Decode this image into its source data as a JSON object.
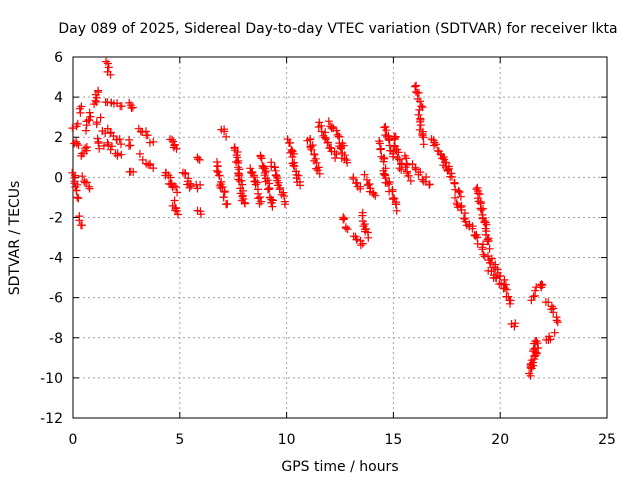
{
  "chart_data": {
    "type": "scatter",
    "title": "Day 089 of 2025, Sidereal Day-to-day VTEC variation (SDTVAR) for receiver lkta",
    "xlabel": "GPS time / hours",
    "ylabel": "SDTVAR / TECUs",
    "xlim": [
      0,
      25
    ],
    "ylim": [
      -12,
      6
    ],
    "xticks": [
      0,
      5,
      10,
      15,
      20,
      25
    ],
    "yticks": [
      -12,
      -10,
      -8,
      -6,
      -4,
      -2,
      0,
      2,
      4,
      6
    ],
    "grid": true,
    "marker": "+",
    "color": "#ff0000",
    "series": [
      {
        "name": "SDTVAR",
        "segments": [
          {
            "x": [
              0.0,
              0.2
            ],
            "y": [
              2.4,
              2.6
            ]
          },
          {
            "x": [
              0.0,
              0.3
            ],
            "y": [
              1.8,
              1.5
            ]
          },
          {
            "x": [
              0.0,
              0.25
            ],
            "y": [
              0.2,
              -1.0
            ]
          },
          {
            "x": [
              0.3,
              0.4
            ],
            "y": [
              -2.1,
              -2.5
            ]
          },
          {
            "x": [
              0.3,
              0.45
            ],
            "y": [
              3.2,
              3.5
            ]
          },
          {
            "x": [
              0.4,
              0.7
            ],
            "y": [
              1.0,
              1.6
            ]
          },
          {
            "x": [
              0.5,
              0.75
            ],
            "y": [
              0.0,
              -0.6
            ]
          },
          {
            "x": [
              0.6,
              0.8
            ],
            "y": [
              2.5,
              3.2
            ]
          },
          {
            "x": [
              1.0,
              1.15
            ],
            "y": [
              3.6,
              4.3
            ]
          },
          {
            "x": [
              1.05,
              1.25
            ],
            "y": [
              2.8,
              3.0
            ]
          },
          {
            "x": [
              1.1,
              1.25
            ],
            "y": [
              2.0,
              1.6
            ]
          },
          {
            "x": [
              1.5,
              1.75
            ],
            "y": [
              5.7,
              5.2
            ]
          },
          {
            "x": [
              1.5,
              2.3
            ],
            "y": [
              3.7,
              3.6
            ]
          },
          {
            "x": [
              1.4,
              2.3
            ],
            "y": [
              2.4,
              1.8
            ]
          },
          {
            "x": [
              1.5,
              2.2
            ],
            "y": [
              1.7,
              1.1
            ]
          },
          {
            "x": [
              2.6,
              2.8
            ],
            "y": [
              3.8,
              3.4
            ]
          },
          {
            "x": [
              2.6,
              2.75
            ],
            "y": [
              1.8,
              1.5
            ]
          },
          {
            "x": [
              2.65,
              2.8
            ],
            "y": [
              0.4,
              0.2
            ]
          },
          {
            "x": [
              3.1,
              3.7
            ],
            "y": [
              2.4,
              1.8
            ]
          },
          {
            "x": [
              3.2,
              3.7
            ],
            "y": [
              1.0,
              0.4
            ]
          },
          {
            "x": [
              4.3,
              4.6
            ],
            "y": [
              0.3,
              -0.5
            ]
          },
          {
            "x": [
              4.6,
              4.8
            ],
            "y": [
              2.0,
              1.3
            ]
          },
          {
            "x": [
              4.6,
              4.9
            ],
            "y": [
              -0.1,
              -0.6
            ]
          },
          {
            "x": [
              4.7,
              4.9
            ],
            "y": [
              -1.2,
              -1.9
            ]
          },
          {
            "x": [
              5.2,
              5.5
            ],
            "y": [
              0.3,
              -0.6
            ]
          },
          {
            "x": [
              5.8,
              5.9
            ],
            "y": [
              1.0,
              0.8
            ]
          },
          {
            "x": [
              5.8,
              5.95
            ],
            "y": [
              -0.3,
              -0.5
            ]
          },
          {
            "x": [
              5.9,
              5.95
            ],
            "y": [
              -1.6,
              -1.8
            ]
          },
          {
            "x": [
              6.7,
              7.2
            ],
            "y": [
              0.6,
              -1.4
            ]
          },
          {
            "x": [
              7.0,
              7.2
            ],
            "y": [
              2.5,
              2.1
            ]
          },
          {
            "x": [
              7.6,
              8.0
            ],
            "y": [
              1.6,
              -1.4
            ]
          },
          {
            "x": [
              8.3,
              8.8
            ],
            "y": [
              0.5,
              -1.2
            ]
          },
          {
            "x": [
              8.8,
              9.4
            ],
            "y": [
              1.0,
              -1.5
            ]
          },
          {
            "x": [
              9.3,
              9.9
            ],
            "y": [
              0.8,
              -1.2
            ]
          },
          {
            "x": [
              10.1,
              10.6
            ],
            "y": [
              1.8,
              -0.4
            ]
          },
          {
            "x": [
              11.0,
              11.5
            ],
            "y": [
              2.0,
              0.2
            ]
          },
          {
            "x": [
              11.5,
              12.3
            ],
            "y": [
              2.6,
              1.0
            ]
          },
          {
            "x": [
              12.0,
              12.7
            ],
            "y": [
              2.7,
              1.5
            ]
          },
          {
            "x": [
              12.5,
              12.8
            ],
            "y": [
              1.5,
              0.6
            ]
          },
          {
            "x": [
              12.6,
              12.9
            ],
            "y": [
              -2.0,
              -2.6
            ]
          },
          {
            "x": [
              13.1,
              13.6
            ],
            "y": [
              -2.8,
              -3.3
            ]
          },
          {
            "x": [
              13.1,
              13.5
            ],
            "y": [
              0.0,
              -0.6
            ]
          },
          {
            "x": [
              13.5,
              13.8
            ],
            "y": [
              -1.8,
              -2.9
            ]
          },
          {
            "x": [
              13.7,
              14.1
            ],
            "y": [
              0.0,
              -1.0
            ]
          },
          {
            "x": [
              14.4,
              14.6
            ],
            "y": [
              1.8,
              0.6
            ]
          },
          {
            "x": [
              14.6,
              15.0
            ],
            "y": [
              2.6,
              1.0
            ]
          },
          {
            "x": [
              14.5,
              15.2
            ],
            "y": [
              0.4,
              -1.6
            ]
          },
          {
            "x": [
              15.0,
              15.4
            ],
            "y": [
              2.2,
              0.4
            ]
          },
          {
            "x": [
              15.5,
              15.8
            ],
            "y": [
              0.9,
              -0.2
            ]
          },
          {
            "x": [
              16.0,
              16.3
            ],
            "y": [
              4.5,
              3.6
            ]
          },
          {
            "x": [
              16.2,
              16.4
            ],
            "y": [
              3.2,
              1.8
            ]
          },
          {
            "x": [
              15.9,
              16.7
            ],
            "y": [
              0.6,
              -0.4
            ]
          },
          {
            "x": [
              16.8,
              17.6
            ],
            "y": [
              1.9,
              0.4
            ]
          },
          {
            "x": [
              17.4,
              18.1
            ],
            "y": [
              0.7,
              -0.8
            ]
          },
          {
            "x": [
              17.9,
              18.3
            ],
            "y": [
              -1.0,
              -1.8
            ]
          },
          {
            "x": [
              18.3,
              19.0
            ],
            "y": [
              -2.0,
              -3.2
            ]
          },
          {
            "x": [
              18.9,
              19.5
            ],
            "y": [
              -0.5,
              -3.4
            ]
          },
          {
            "x": [
              19.1,
              19.8
            ],
            "y": [
              -3.4,
              -4.6
            ]
          },
          {
            "x": [
              19.5,
              20.1
            ],
            "y": [
              -4.6,
              -5.4
            ]
          },
          {
            "x": [
              19.9,
              20.3
            ],
            "y": [
              -4.7,
              -5.5
            ]
          },
          {
            "x": [
              20.2,
              20.5
            ],
            "y": [
              -5.6,
              -6.3
            ]
          },
          {
            "x": [
              20.6,
              20.7
            ],
            "y": [
              -7.3,
              -7.5
            ]
          },
          {
            "x": [
              21.4,
              21.7
            ],
            "y": [
              -9.9,
              -8.0
            ]
          },
          {
            "x": [
              21.5,
              21.8
            ],
            "y": [
              -9.2,
              -8.5
            ]
          },
          {
            "x": [
              21.5,
              22.0
            ],
            "y": [
              -6.0,
              -5.2
            ]
          },
          {
            "x": [
              22.1,
              22.5
            ],
            "y": [
              -8.2,
              -7.9
            ]
          },
          {
            "x": [
              22.2,
              22.7
            ],
            "y": [
              -6.3,
              -7.1
            ]
          }
        ]
      }
    ]
  }
}
